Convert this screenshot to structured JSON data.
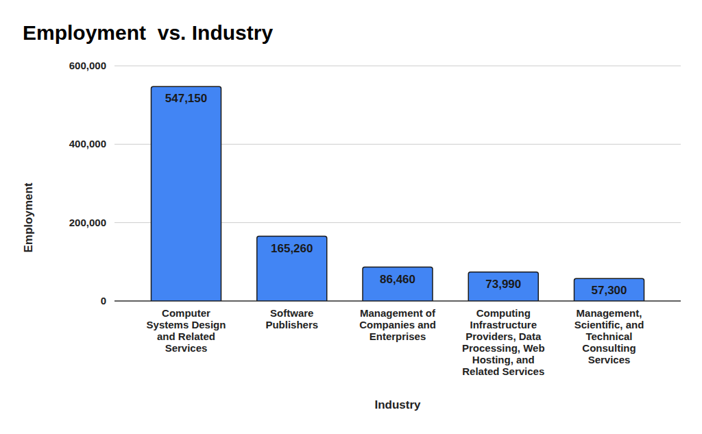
{
  "chart_data": {
    "type": "bar",
    "title": "Employment  vs. Industry",
    "x_label": "Industry",
    "y_label": "Employment",
    "categories": [
      "Computer Systems Design and Related Services",
      "Software Publishers",
      "Management of Companies and Enterprises",
      "Computing Infrastructure Providers, Data Processing, Web Hosting, and Related Services",
      "Management, Scientific, and Technical Consulting Services"
    ],
    "values": [
      547150,
      165260,
      86460,
      73990,
      57300
    ],
    "value_labels": [
      "547,150",
      "165,260",
      "86,460",
      "73,990",
      "57,300"
    ],
    "color": "#4285f4",
    "ylim": [
      0,
      600000
    ],
    "yticks": [
      0,
      {
        "value": 200000,
        "label": "200,000"
      },
      {
        "value": 400000,
        "label": "400,000"
      },
      {
        "value": 600000,
        "label": "600,000"
      }
    ],
    "grid": true,
    "data_labels": true
  }
}
